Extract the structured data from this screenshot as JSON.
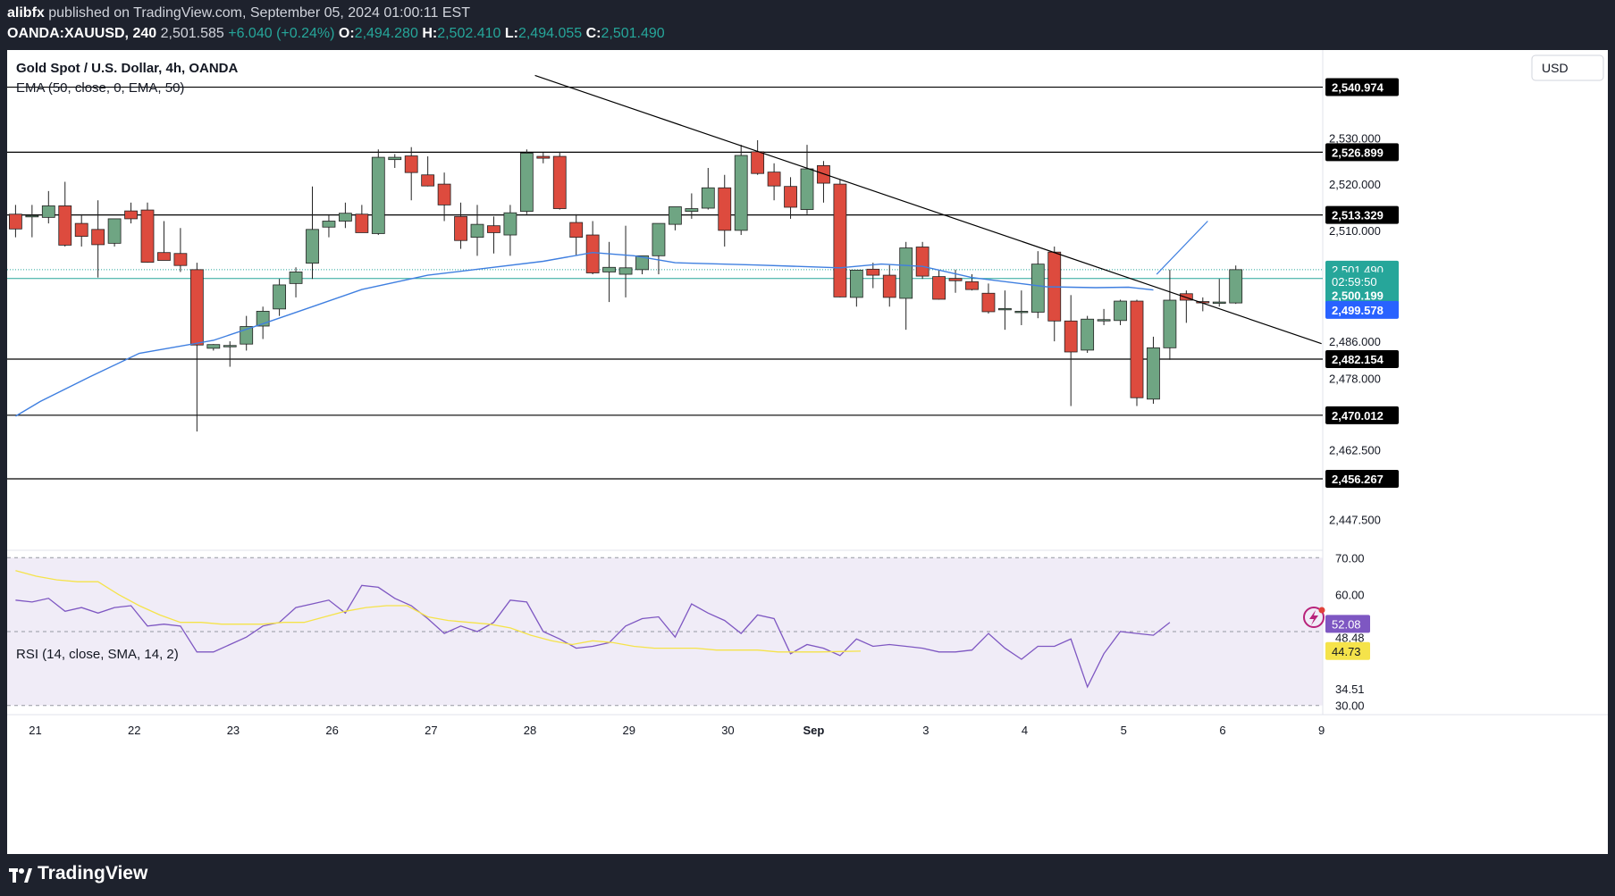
{
  "header": {
    "author": "alibfx",
    "published_text": "published on TradingView.com, September 05, 2024 01:00:11 EST",
    "symbol": "OANDA:XAUUSD, 240",
    "last": "2,501.585",
    "change": "+6.040 (+0.24%)",
    "o_label": "O:",
    "o_value": "2,494.280",
    "h_label": "H:",
    "h_value": "2,502.410",
    "l_label": "L:",
    "l_value": "2,494.055",
    "c_label": "C:",
    "c_value": "2,501.490"
  },
  "legend": {
    "title": "Gold Spot / U.S. Dollar, 4h, OANDA",
    "ema": "EMA (50, close, 0, EMA, 50)",
    "rsi": "RSI (14, close, SMA, 14, 2)"
  },
  "currency_label": "USD",
  "footer": {
    "brand": "TradingView"
  },
  "colors": {
    "up": "#6fa583",
    "down": "#dd4b3e",
    "ema": "#3f7fe0",
    "rsi": "#7e57c2",
    "rsi_ma": "#f5e34a",
    "hline": "#000000",
    "trend": "#000000",
    "last_price": "#26a69a",
    "ema_tag": "#2962ff"
  },
  "chart_data": [
    {
      "type": "candlestick",
      "title": "Gold Spot / U.S. Dollar, 4h, OANDA",
      "ylim": [
        2441,
        2549
      ],
      "y_ticks": [
        "2,530.000",
        "2,520.000",
        "2,510.000",
        "2,486.000",
        "2,478.000",
        "2,462.500",
        "2,447.500"
      ],
      "x_ticks": [
        "21",
        "22",
        "23",
        "26",
        "27",
        "28",
        "29",
        "30",
        "Sep",
        "3",
        "4",
        "5",
        "6",
        "9"
      ],
      "horizontal_levels": [
        {
          "value": 2540.974,
          "label": "2,540.974"
        },
        {
          "value": 2526.899,
          "label": "2,526.899"
        },
        {
          "value": 2513.329,
          "label": "2,513.329"
        },
        {
          "value": 2482.154,
          "label": "2,482.154"
        },
        {
          "value": 2470.012,
          "label": "2,470.012"
        },
        {
          "value": 2456.267,
          "label": "2,456.267"
        }
      ],
      "price_tags": [
        {
          "label": "2,501.490",
          "value": 2501.49
        },
        {
          "label": "02:59:50",
          "value": 2499.0
        },
        {
          "label": "2,500.199",
          "value": 2496.0
        },
        {
          "label": "2,499.578",
          "value": 2492.8
        }
      ],
      "trendline": [
        {
          "x": 31.5,
          "y": 2543.5
        },
        {
          "x": 79.2,
          "y": 2485.5
        }
      ],
      "projection_line": [
        {
          "x": 69.2,
          "y": 2500.5
        },
        {
          "x": 72.3,
          "y": 2512.0
        }
      ],
      "ohlc": [
        [
          2513.5,
          2515.5,
          2508.5,
          2510.3
        ],
        [
          2513.2,
          2515.5,
          2508.5,
          2513.2
        ],
        [
          2512.8,
          2518.5,
          2511.5,
          2515.3
        ],
        [
          2515.3,
          2520.5,
          2506.5,
          2506.8
        ],
        [
          2511.5,
          2513.5,
          2506.5,
          2508.7
        ],
        [
          2510.2,
          2516.5,
          2499.8,
          2506.9
        ],
        [
          2507.2,
          2512.5,
          2506.5,
          2512.5
        ],
        [
          2514.2,
          2516.0,
          2511.5,
          2512.5
        ],
        [
          2514.4,
          2516.0,
          2503.0,
          2503.1
        ],
        [
          2505.2,
          2512.0,
          2503.5,
          2503.5
        ],
        [
          2505.0,
          2510.5,
          2501.0,
          2502.4
        ],
        [
          2501.5,
          2503.0,
          2466.5,
          2485.2
        ],
        [
          2484.5,
          2485.4,
          2484.0,
          2485.3
        ],
        [
          2485.1,
          2486.0,
          2480.5,
          2485.1
        ],
        [
          2485.4,
          2491.5,
          2484.0,
          2489.2
        ],
        [
          2489.3,
          2493.5,
          2486.5,
          2492.5
        ],
        [
          2493.0,
          2499.5,
          2491.5,
          2498.2
        ],
        [
          2498.5,
          2502.0,
          2495.5,
          2501.0
        ],
        [
          2502.9,
          2519.5,
          2499.5,
          2510.2
        ],
        [
          2510.7,
          2513.5,
          2508.5,
          2512.0
        ],
        [
          2512.0,
          2516.0,
          2510.5,
          2513.7
        ],
        [
          2513.5,
          2515.5,
          2509.5,
          2509.5
        ],
        [
          2509.3,
          2527.5,
          2509.0,
          2525.8
        ],
        [
          2525.3,
          2526.5,
          2523.5,
          2525.8
        ],
        [
          2526.1,
          2528.0,
          2516.5,
          2522.5
        ],
        [
          2522.0,
          2526.0,
          2519.5,
          2519.6
        ],
        [
          2520.0,
          2522.5,
          2512.0,
          2515.5
        ],
        [
          2513.0,
          2516.0,
          2506.0,
          2507.8
        ],
        [
          2508.5,
          2515.5,
          2504.5,
          2511.3
        ],
        [
          2511.0,
          2513.0,
          2505.0,
          2509.5
        ],
        [
          2509.0,
          2515.5,
          2504.5,
          2513.8
        ],
        [
          2514.1,
          2527.5,
          2513.5,
          2526.7
        ],
        [
          2526.0,
          2526.8,
          2524.5,
          2525.6
        ],
        [
          2526.0,
          2527.0,
          2514.5,
          2514.7
        ],
        [
          2511.7,
          2513.5,
          2504.5,
          2508.5
        ],
        [
          2509.0,
          2512.0,
          2500.5,
          2500.8
        ],
        [
          2501.0,
          2507.5,
          2494.5,
          2502.0
        ],
        [
          2500.5,
          2511.0,
          2495.5,
          2501.9
        ],
        [
          2501.5,
          2504.0,
          2500.5,
          2504.5
        ],
        [
          2504.5,
          2511.5,
          2500.5,
          2511.5
        ],
        [
          2511.3,
          2515.0,
          2510.0,
          2515.1
        ],
        [
          2514.1,
          2518.0,
          2512.5,
          2514.7
        ],
        [
          2514.8,
          2523.5,
          2514.5,
          2519.2
        ],
        [
          2519.2,
          2522.0,
          2506.5,
          2510.0
        ],
        [
          2510.0,
          2528.5,
          2509.0,
          2526.2
        ],
        [
          2527.0,
          2529.5,
          2522.0,
          2522.3
        ],
        [
          2522.6,
          2524.5,
          2516.5,
          2519.6
        ],
        [
          2519.5,
          2521.5,
          2512.5,
          2515.0
        ],
        [
          2514.5,
          2528.5,
          2513.5,
          2523.3
        ],
        [
          2524.0,
          2525.0,
          2516.0,
          2520.2
        ],
        [
          2520.0,
          2521.0,
          2495.5,
          2495.6
        ],
        [
          2495.5,
          2500.5,
          2493.5,
          2501.4
        ],
        [
          2501.6,
          2503.0,
          2497.5,
          2500.3
        ],
        [
          2500.3,
          2502.5,
          2493.5,
          2495.5
        ],
        [
          2495.3,
          2507.5,
          2488.5,
          2506.2
        ],
        [
          2506.4,
          2507.5,
          2499.5,
          2500.1
        ],
        [
          2500.0,
          2501.5,
          2495.0,
          2495.1
        ],
        [
          2499.6,
          2501.5,
          2496.5,
          2499.1
        ],
        [
          2498.9,
          2500.5,
          2497.0,
          2497.2
        ],
        [
          2496.4,
          2498.5,
          2492.0,
          2492.4
        ],
        [
          2493.1,
          2497.0,
          2488.5,
          2493.1
        ],
        [
          2492.3,
          2497.0,
          2489.5,
          2492.5
        ],
        [
          2492.3,
          2505.5,
          2491.0,
          2502.7
        ],
        [
          2505.3,
          2506.5,
          2486.0,
          2490.4
        ],
        [
          2490.4,
          2496.0,
          2472.0,
          2483.7
        ],
        [
          2484.1,
          2491.5,
          2483.5,
          2490.8
        ],
        [
          2490.5,
          2493.0,
          2489.5,
          2490.7
        ],
        [
          2490.5,
          2495.0,
          2489.5,
          2494.7
        ],
        [
          2494.7,
          2495.0,
          2472.0,
          2473.8
        ],
        [
          2473.5,
          2487.0,
          2472.5,
          2484.6
        ],
        [
          2484.6,
          2501.5,
          2482.0,
          2494.9
        ],
        [
          2496.3,
          2497.0,
          2490.0,
          2494.9
        ],
        [
          2494.6,
          2495.5,
          2492.5,
          2494.4
        ],
        [
          2494.3,
          2499.5,
          2493.5,
          2494.5
        ],
        [
          2494.3,
          2502.4,
          2494.1,
          2501.5
        ]
      ],
      "ema": [
        [
          0,
          2469.8
        ],
        [
          3,
          2473.0
        ],
        [
          9,
          2478.3
        ],
        [
          15,
          2483.4
        ],
        [
          24,
          2486.2
        ],
        [
          30,
          2489.8
        ],
        [
          36,
          2493.5
        ],
        [
          42,
          2497.2
        ],
        [
          50,
          2500.3
        ],
        [
          57,
          2501.8
        ],
        [
          64,
          2503.3
        ],
        [
          70,
          2505.2
        ],
        [
          75,
          2504.5
        ],
        [
          80,
          2503.0
        ],
        [
          90,
          2502.5
        ],
        [
          100,
          2501.9
        ],
        [
          105,
          2502.7
        ],
        [
          110,
          2502.2
        ],
        [
          116,
          2499.8
        ],
        [
          125,
          2497.8
        ],
        [
          131,
          2497.6
        ],
        [
          135,
          2497.7
        ],
        [
          138,
          2497.1
        ]
      ]
    },
    {
      "type": "line",
      "title": "RSI (14, close, SMA, 14, 2)",
      "ylim": [
        28,
        72
      ],
      "y_ticks": [
        "70.00",
        "60.00",
        "48.48",
        "34.51",
        "30.00"
      ],
      "bands": [
        70,
        50,
        30
      ],
      "value_tags": [
        {
          "label": "52.08",
          "value": 52.08
        },
        {
          "label": "44.73",
          "value": 44.73
        }
      ],
      "series": [
        {
          "name": "RSI",
          "points": [
            [
              0,
              58.5
            ],
            [
              2,
              58.0
            ],
            [
              4,
              59.0
            ],
            [
              6,
              55.5
            ],
            [
              8,
              56.5
            ],
            [
              10,
              55.0
            ],
            [
              12,
              56.5
            ],
            [
              14,
              57.0
            ],
            [
              16,
              51.5
            ],
            [
              18,
              52.0
            ],
            [
              20,
              51.5
            ],
            [
              22,
              44.5
            ],
            [
              24,
              44.5
            ],
            [
              26,
              46.5
            ],
            [
              28,
              48.5
            ],
            [
              30,
              51.5
            ],
            [
              32,
              52.5
            ],
            [
              34,
              56.5
            ],
            [
              36,
              57.5
            ],
            [
              38,
              58.5
            ],
            [
              40,
              55.0
            ],
            [
              42,
              62.5
            ],
            [
              44,
              62.0
            ],
            [
              46,
              59.0
            ],
            [
              48,
              57.0
            ],
            [
              50,
              53.5
            ],
            [
              52,
              49.5
            ],
            [
              54,
              51.5
            ],
            [
              56,
              50.0
            ],
            [
              58,
              52.5
            ],
            [
              60,
              58.5
            ],
            [
              62,
              58.0
            ],
            [
              64,
              50.0
            ],
            [
              66,
              48.0
            ],
            [
              68,
              45.5
            ],
            [
              70,
              46.0
            ],
            [
              72,
              47.0
            ],
            [
              74,
              51.5
            ],
            [
              76,
              53.5
            ],
            [
              78,
              54.0
            ],
            [
              80,
              48.5
            ],
            [
              82,
              57.5
            ],
            [
              84,
              55.0
            ],
            [
              86,
              53.0
            ],
            [
              88,
              49.5
            ],
            [
              90,
              54.5
            ],
            [
              92,
              53.5
            ],
            [
              94,
              44.0
            ],
            [
              96,
              46.5
            ],
            [
              98,
              45.5
            ],
            [
              100,
              43.5
            ],
            [
              102,
              48.0
            ],
            [
              104,
              46.0
            ],
            [
              106,
              46.5
            ],
            [
              108,
              46.0
            ],
            [
              110,
              45.5
            ],
            [
              112,
              44.5
            ],
            [
              114,
              44.5
            ],
            [
              116,
              45.0
            ],
            [
              118,
              49.5
            ],
            [
              120,
              45.5
            ],
            [
              122,
              42.5
            ],
            [
              124,
              46.0
            ],
            [
              126,
              46.0
            ],
            [
              128,
              48.0
            ],
            [
              130,
              35.0
            ],
            [
              132,
              44.0
            ],
            [
              134,
              50.0
            ],
            [
              136,
              49.5
            ],
            [
              138,
              49.0
            ],
            [
              140,
              52.5
            ]
          ]
        },
        {
          "name": "RSI-based MA",
          "points": [
            [
              0,
              66.5
            ],
            [
              5,
              65.0
            ],
            [
              10,
              64.0
            ],
            [
              15,
              63.5
            ],
            [
              20,
              63.5
            ],
            [
              25,
              60.0
            ],
            [
              30,
              57.0
            ],
            [
              35,
              54.5
            ],
            [
              40,
              52.5
            ],
            [
              45,
              52.5
            ],
            [
              50,
              52.0
            ],
            [
              55,
              52.0
            ],
            [
              60,
              52.0
            ],
            [
              65,
              52.5
            ],
            [
              70,
              52.5
            ],
            [
              75,
              54.0
            ],
            [
              80,
              55.5
            ],
            [
              85,
              56.5
            ],
            [
              90,
              57.0
            ],
            [
              95,
              57.0
            ],
            [
              100,
              54.0
            ],
            [
              105,
              53.0
            ],
            [
              110,
              52.5
            ],
            [
              115,
              52.0
            ],
            [
              120,
              51.0
            ],
            [
              125,
              49.0
            ],
            [
              130,
              47.5
            ],
            [
              135,
              46.5
            ],
            [
              140,
              47.5
            ],
            [
              145,
              47.0
            ],
            [
              150,
              46.0
            ],
            [
              155,
              45.5
            ],
            [
              160,
              45.5
            ],
            [
              165,
              45.5
            ],
            [
              170,
              45.0
            ],
            [
              175,
              45.0
            ],
            [
              180,
              45.0
            ],
            [
              185,
              44.5
            ],
            [
              190,
              44.5
            ],
            [
              195,
              44.5
            ],
            [
              200,
              44.6
            ],
            [
              205,
              44.7
            ]
          ]
        }
      ]
    }
  ]
}
